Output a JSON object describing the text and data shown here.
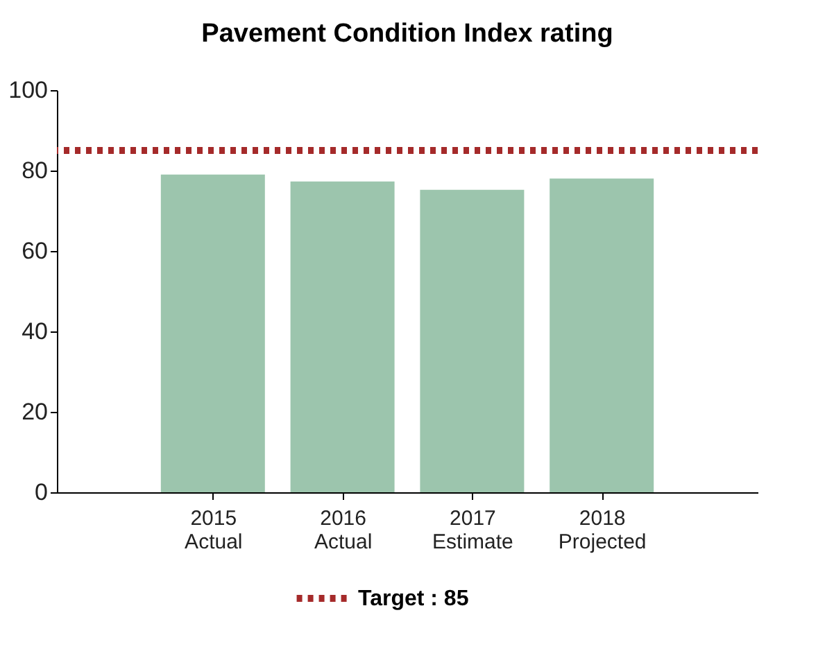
{
  "chart_data": {
    "type": "bar",
    "title": "Pavement Condition Index rating",
    "categories": [
      "2015\nActual",
      "2016\nActual",
      "2017\nEstimate",
      "2018\nProjected"
    ],
    "values": [
      79,
      77.3,
      75.2,
      78
    ],
    "color": "#9cc5ad",
    "ylim": [
      0,
      100
    ],
    "yticks": [
      0,
      20,
      40,
      60,
      80,
      100
    ],
    "grid": false,
    "ref_lines": [
      {
        "axis": "y",
        "value": 85,
        "label": "Target : 85",
        "color": "#a52a2a",
        "line_style": "dotted"
      }
    ],
    "legend": "bottom"
  }
}
